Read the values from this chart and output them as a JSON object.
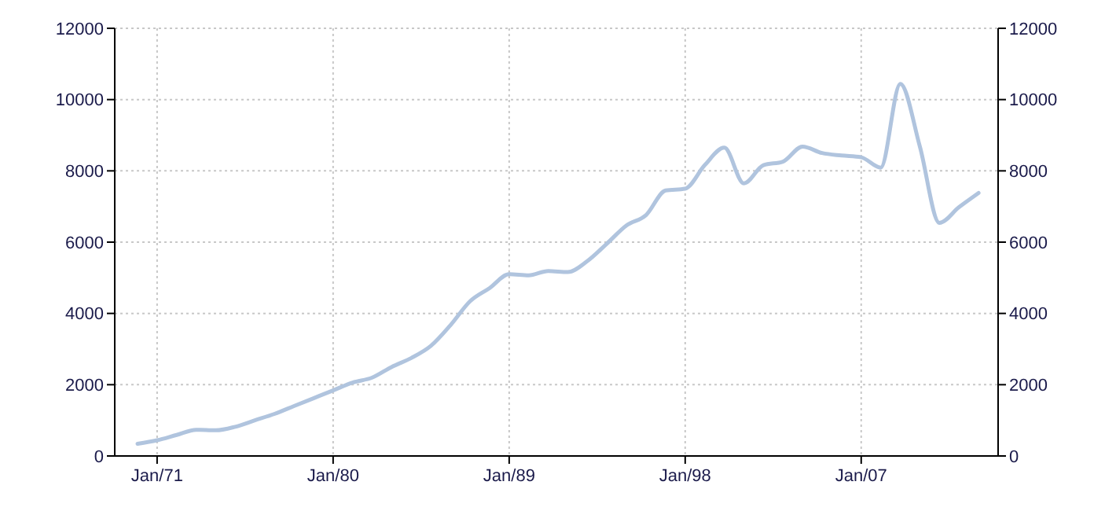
{
  "chart_data": {
    "type": "line",
    "x": [
      "1970-01",
      "1971-01",
      "1972-01",
      "1973-01",
      "1974-01",
      "1975-01",
      "1976-01",
      "1977-01",
      "1978-01",
      "1979-01",
      "1980-01",
      "1981-01",
      "1982-01",
      "1983-01",
      "1984-01",
      "1985-01",
      "1986-01",
      "1987-01",
      "1988-01",
      "1989-01",
      "1990-01",
      "1991-01",
      "1992-01",
      "1993-01",
      "1994-01",
      "1995-01",
      "1996-01",
      "1997-01",
      "1998-01",
      "1999-01",
      "2000-01",
      "2001-01",
      "2002-01",
      "2003-01",
      "2004-01",
      "2005-01",
      "2006-01",
      "2007-01",
      "2008-01",
      "2009-01",
      "2010-01",
      "2011-01",
      "2012-01",
      "2013-01"
    ],
    "series": [
      {
        "color": "#b0c4de",
        "values": [
          340,
          440,
          590,
          735,
          720,
          820,
          1000,
          1180,
          1400,
          1620,
          1840,
          2060,
          2200,
          2500,
          2750,
          3090,
          3670,
          4340,
          4710,
          5100,
          5070,
          5190,
          5160,
          5470,
          5960,
          6470,
          6760,
          7450,
          7500,
          8160,
          8650,
          7650,
          8160,
          8260,
          8680,
          8500,
          8430,
          8380,
          8090,
          10440,
          8680,
          6540,
          6980,
          7380
        ]
      }
    ],
    "xlim": [
      "1968-11",
      "2014-01"
    ],
    "xticks": [
      {
        "value": "1971-01",
        "label": "Jan/71"
      },
      {
        "value": "1980-01",
        "label": "Jan/80"
      },
      {
        "value": "1989-01",
        "label": "Jan/89"
      },
      {
        "value": "1998-01",
        "label": "Jan/98"
      },
      {
        "value": "2007-01",
        "label": "Jan/07"
      }
    ],
    "ylim": [
      0,
      12000
    ],
    "yticks": [
      0,
      2000,
      4000,
      6000,
      8000,
      10000,
      12000
    ],
    "y2lim": [
      0,
      12000
    ],
    "y2ticks": [
      0,
      2000,
      4000,
      6000,
      8000,
      10000,
      12000
    ],
    "grid": true,
    "marker": "none",
    "line_style": "solid"
  }
}
